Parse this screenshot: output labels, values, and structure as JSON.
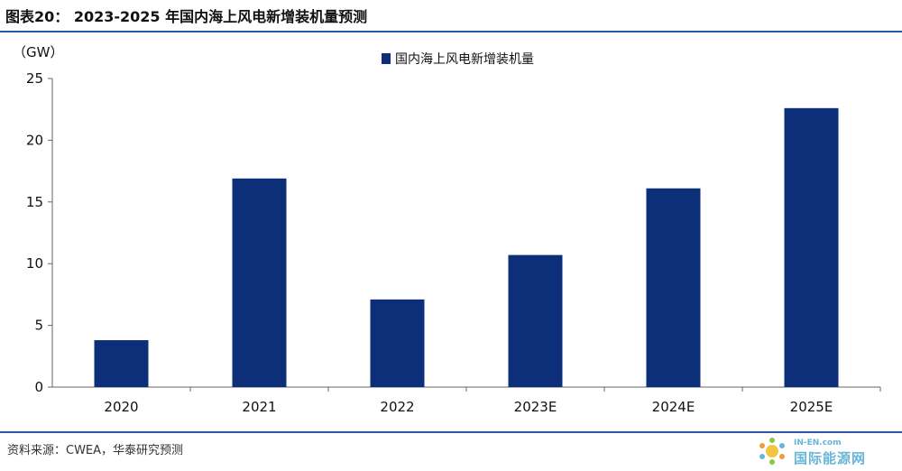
{
  "figure_title": "图表20： 2023-2025 年国内海上风电新增装机量预测",
  "source_text": "资料来源：CWEA，华泰研究预测",
  "watermark": {
    "small": "IN-EN.com",
    "big": "国际能源网"
  },
  "colors": {
    "bar": "#0d2f7a",
    "rule": "#2a5aa8",
    "axis": "#666666"
  },
  "chart_data": {
    "type": "bar",
    "title": "",
    "ylabel": "（GW）",
    "xlabel": "",
    "categories": [
      "2020",
      "2021",
      "2022",
      "2023E",
      "2024E",
      "2025E"
    ],
    "series": [
      {
        "name": "国内海上风电新增装机量",
        "values": [
          3.8,
          16.9,
          7.1,
          10.7,
          16.1,
          22.6
        ]
      }
    ],
    "ylim": [
      0,
      25
    ],
    "yticks": [
      0,
      5,
      10,
      15,
      20,
      25
    ],
    "grid": false,
    "legend_position": "top-center"
  }
}
